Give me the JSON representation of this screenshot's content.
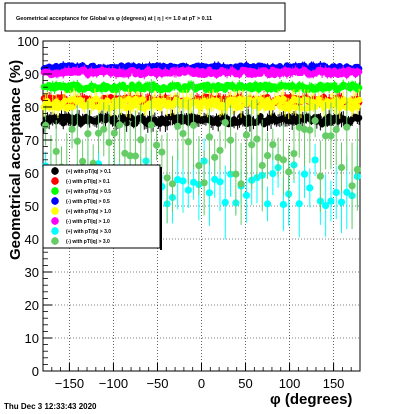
{
  "title": "Geometrical acceptance for Global vs φ (degrees) at | η | <= 1.0 at pT > 0.11",
  "timestamp": "Thu Dec  3 12:33:43 2020",
  "colors": {
    "black": "#000000",
    "red": "#ff0000",
    "green": "#00ff00",
    "blue": "#0000ff",
    "yellow": "#ffff00",
    "magenta": "#ff00ff",
    "cyan": "#00ffff",
    "lightgreen": "#66cc66"
  },
  "chart_data": {
    "type": "scatter",
    "title": "Geometrical acceptance for Global vs φ (degrees) at | η | <= 1.0 at pT > 0.11",
    "xlabel": "φ (degrees)",
    "ylabel": "Geometrical acceptance (%)",
    "xlim": [
      -180,
      180
    ],
    "ylim": [
      0,
      100
    ],
    "xticks": [
      -150,
      -100,
      -50,
      0,
      50,
      100,
      150
    ],
    "yticks": [
      0,
      10,
      20,
      30,
      40,
      50,
      60,
      70,
      80,
      90,
      100
    ],
    "grid": true,
    "legend_position": "left-middle",
    "series": [
      {
        "name": "(+) with pT/|q| > 0.1",
        "color": "#000000",
        "level": 76,
        "spread": 1.2,
        "err": 2
      },
      {
        "name": "(-) with pT/|q| > 0.1",
        "color": "#ff0000",
        "level": 82,
        "spread": 1.0,
        "err": 1.5
      },
      {
        "name": "(+) with pT/|q| > 0.5",
        "color": "#00ff00",
        "level": 86,
        "spread": 0.8,
        "err": 1.2
      },
      {
        "name": "(-) with pT/|q| > 0.5",
        "color": "#0000ff",
        "level": 92,
        "spread": 0.6,
        "err": 1
      },
      {
        "name": "(+) with pT/|q| > 1.0",
        "color": "#ffff00",
        "level": 81,
        "spread": 1.5,
        "err": 2.5
      },
      {
        "name": "(-) with pT/|q| > 1.0",
        "color": "#ff00ff",
        "level": 90.5,
        "spread": 0.8,
        "err": 1.2
      },
      {
        "name": "(+) with pT/|q| > 3.0",
        "color": "#00ffff",
        "level": 57,
        "spread": 7,
        "err": 8
      },
      {
        "name": "(-) with pT/|q| > 3.0",
        "color": "#66cc66",
        "level": 66,
        "spread": 10,
        "err": 10
      }
    ]
  }
}
